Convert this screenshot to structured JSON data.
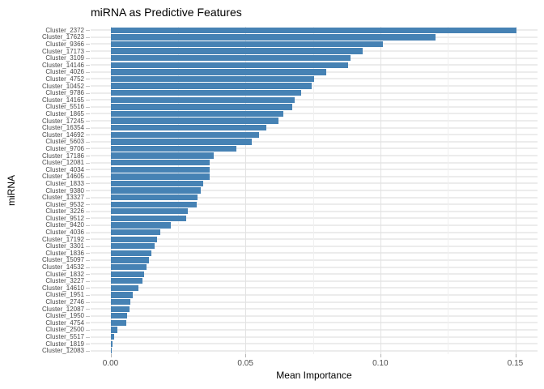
{
  "chart_data": {
    "type": "bar",
    "orientation": "horizontal",
    "title": "miRNA as Predictive Features",
    "xlabel": "Mean Importance",
    "ylabel": "miRNA",
    "bar_color": "#4682B4",
    "grid": "on",
    "legend": "none",
    "xlim": [
      -0.0075,
      0.1583
    ],
    "x_major_ticks": [
      0,
      0.05,
      0.1,
      0.15
    ],
    "x_tick_labels": [
      "0.00",
      "0.05",
      "0.10",
      "0.15"
    ],
    "x_minor_gridlines": [
      0.025,
      0.075,
      0.125
    ],
    "categories": [
      "Cluster_2372",
      "Cluster_17623",
      "Cluster_9366",
      "Cluster_17173",
      "Cluster_3109",
      "Cluster_14146",
      "Cluster_4026",
      "Cluster_4752",
      "Cluster_10452",
      "Cluster_9786",
      "Cluster_14165",
      "Cluster_5516",
      "Cluster_1865",
      "Cluster_17245",
      "Cluster_16354",
      "Cluster_14692",
      "Cluster_5603",
      "Cluster_9706",
      "Cluster_17186",
      "Cluster_12081",
      "Cluster_4034",
      "Cluster_14605",
      "Cluster_1833",
      "Cluster_9380",
      "Cluster_13327",
      "Cluster_9532",
      "Cluster_3226",
      "Cluster_9512",
      "Cluster_9420",
      "Cluster_4036",
      "Cluster_17192",
      "Cluster_3301",
      "Cluster_1836",
      "Cluster_15097",
      "Cluster_14532",
      "Cluster_1832",
      "Cluster_3227",
      "Cluster_14610",
      "Cluster_1951",
      "Cluster_2746",
      "Cluster_12087",
      "Cluster_1950",
      "Cluster_4754",
      "Cluster_2500",
      "Cluster_5517",
      "Cluster_1819",
      "Cluster_12083"
    ],
    "values": [
      0.1505,
      0.1205,
      0.101,
      0.0933,
      0.0889,
      0.0879,
      0.0798,
      0.0753,
      0.0744,
      0.0706,
      0.0681,
      0.0672,
      0.0639,
      0.0621,
      0.0576,
      0.0549,
      0.0524,
      0.0465,
      0.0381,
      0.0368,
      0.0367,
      0.0366,
      0.0343,
      0.0333,
      0.0321,
      0.0318,
      0.0285,
      0.0279,
      0.0222,
      0.0183,
      0.0171,
      0.0162,
      0.015,
      0.0141,
      0.0132,
      0.0123,
      0.0118,
      0.0102,
      0.0081,
      0.0072,
      0.0071,
      0.006,
      0.0057,
      0.0024,
      0.0012,
      0.0006,
      0.0002
    ]
  }
}
